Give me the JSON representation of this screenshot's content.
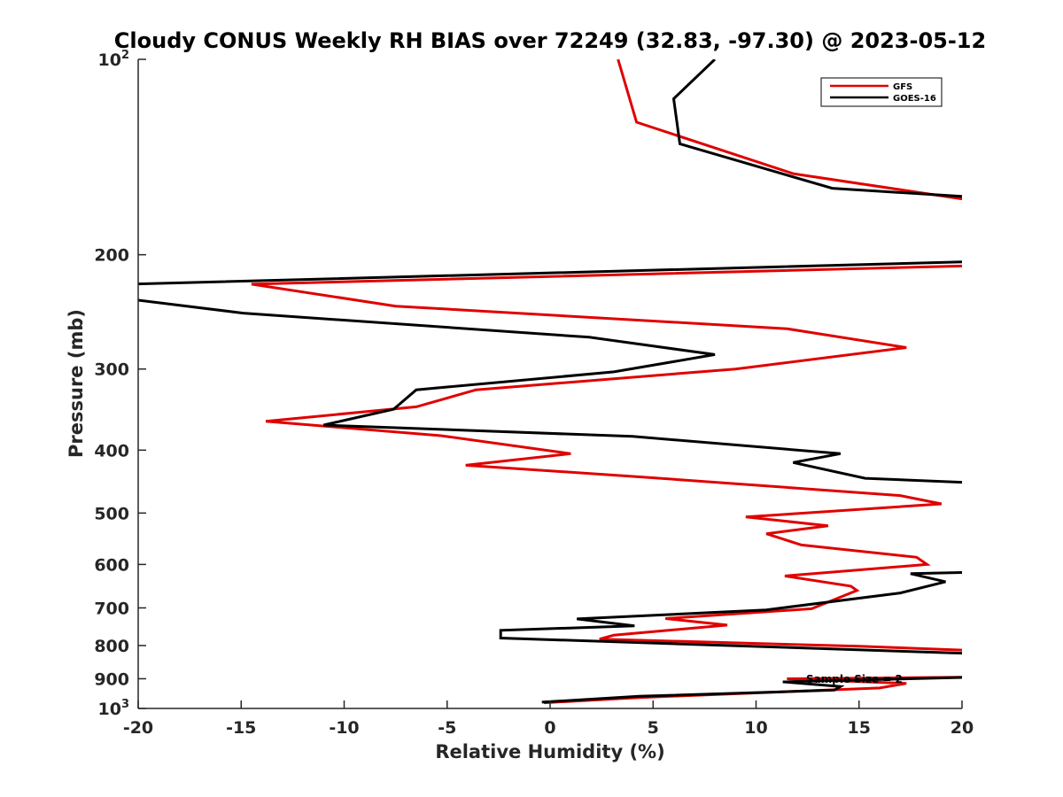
{
  "chart_data": {
    "type": "line",
    "title": "Cloudy CONUS Weekly RH BIAS over 72249 (32.83, -97.30) @ 2023-05-12",
    "xlabel": "Relative Humidity (%)",
    "ylabel": "Pressure (mb)",
    "xlim": [
      -20,
      20
    ],
    "ylim": [
      100,
      1000
    ],
    "yscale": "log",
    "y_reversed": true,
    "grid": false,
    "x_ticks": [
      "-20",
      "-15",
      "-10",
      "-5",
      "0",
      "5",
      "10",
      "15",
      "20"
    ],
    "y_ticks": [
      {
        "value": 100,
        "base": "10",
        "exp": "2"
      },
      {
        "value": 200,
        "label": "200"
      },
      {
        "value": 300,
        "label": "300"
      },
      {
        "value": 400,
        "label": "400"
      },
      {
        "value": 500,
        "label": "500"
      },
      {
        "value": 600,
        "label": "600"
      },
      {
        "value": 700,
        "label": "700"
      },
      {
        "value": 800,
        "label": "800"
      },
      {
        "value": 900,
        "label": "900"
      },
      {
        "value": 1000,
        "base": "10",
        "exp": "3"
      }
    ],
    "legend_position": "top-right",
    "annotation": "Sample Size = 2",
    "series": [
      {
        "name": "GFS",
        "color": "#e00000",
        "points": [
          [
            3.3,
            100
          ],
          [
            4.2,
            125
          ],
          [
            11.8,
            150
          ],
          [
            20.5,
            165
          ],
          [
            20.5,
            208
          ],
          [
            -14.5,
            222
          ],
          [
            -7.5,
            240
          ],
          [
            11.5,
            260
          ],
          [
            17.3,
            278
          ],
          [
            9.0,
            300
          ],
          [
            -3.6,
            323
          ],
          [
            -6.5,
            343
          ],
          [
            -13.8,
            361
          ],
          [
            -5.3,
            380
          ],
          [
            1.0,
            405
          ],
          [
            -4.1,
            422
          ],
          [
            4.5,
            440
          ],
          [
            17.0,
            470
          ],
          [
            19.0,
            484
          ],
          [
            9.5,
            507
          ],
          [
            13.5,
            523
          ],
          [
            10.5,
            538
          ],
          [
            12.2,
            560
          ],
          [
            17.8,
            585
          ],
          [
            18.3,
            600
          ],
          [
            11.4,
            625
          ],
          [
            14.6,
            648
          ],
          [
            14.9,
            658
          ],
          [
            12.7,
            702
          ],
          [
            5.6,
            727
          ],
          [
            8.6,
            744
          ],
          [
            3.1,
            771
          ],
          [
            2.4,
            782
          ],
          [
            15.0,
            802
          ],
          [
            20.5,
            814
          ],
          [
            20.5,
            895
          ],
          [
            11.5,
            900
          ],
          [
            17.3,
            915
          ],
          [
            16.0,
            930
          ],
          [
            4.3,
            962
          ],
          [
            -0.3,
            980
          ]
        ]
      },
      {
        "name": "GOES-16",
        "color": "#000000",
        "points": [
          [
            8.0,
            100
          ],
          [
            6.0,
            115
          ],
          [
            6.3,
            135
          ],
          [
            13.7,
            158
          ],
          [
            20.5,
            163
          ],
          [
            20.5,
            205
          ],
          [
            -20.5,
            222
          ],
          [
            -20.0,
            235
          ],
          [
            -14.9,
            246
          ],
          [
            1.9,
            268
          ],
          [
            8.0,
            285
          ],
          [
            3.1,
            303
          ],
          [
            -6.5,
            323
          ],
          [
            -7.6,
            346
          ],
          [
            -11.0,
            366
          ],
          [
            4.0,
            381
          ],
          [
            14.1,
            405
          ],
          [
            11.8,
            418
          ],
          [
            15.3,
            442
          ],
          [
            20.5,
            449
          ],
          [
            20.5,
            617
          ],
          [
            17.5,
            620
          ],
          [
            19.2,
            638
          ],
          [
            17.0,
            664
          ],
          [
            10.5,
            705
          ],
          [
            1.3,
            728
          ],
          [
            4.1,
            746
          ],
          [
            -2.4,
            758
          ],
          [
            -2.4,
            779
          ],
          [
            20.5,
            823
          ],
          [
            20.5,
            895
          ],
          [
            11.3,
            910
          ],
          [
            14.1,
            925
          ],
          [
            13.8,
            937
          ],
          [
            4.3,
            958
          ],
          [
            -0.4,
            978
          ]
        ]
      }
    ]
  }
}
